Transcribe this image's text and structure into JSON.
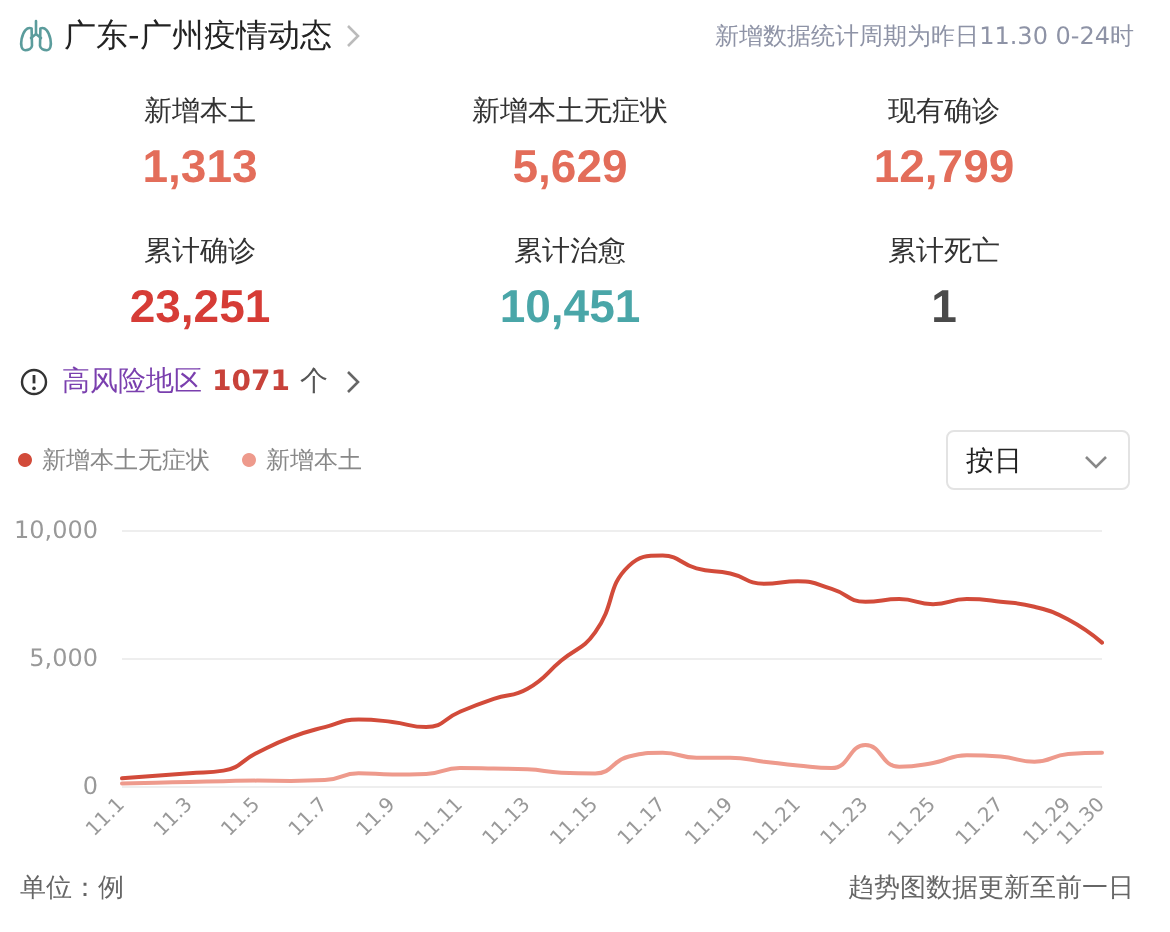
{
  "chart_data": [
    {
      "type": "other",
      "title": "广东-广州疫情动态",
      "subtitle": "新增数据统计周期为昨日11.30 0-24时",
      "annotations": [
        "新增本土",
        "1,313",
        "新增本土无症状",
        "5,629",
        "现有确诊",
        "12,799",
        "累计确诊",
        "23,251",
        "累计治愈",
        "10,451",
        "累计死亡",
        "1",
        "高风险地区 1071 个"
      ]
    },
    {
      "type": "line",
      "categories": [
        "11.1",
        null,
        "11.3",
        null,
        "11.5",
        null,
        "11.7",
        null,
        "11.9",
        null,
        "11.11",
        null,
        "11.13",
        null,
        "11.15",
        null,
        "11.17",
        null,
        "11.19",
        null,
        "11.21",
        null,
        "11.23",
        null,
        "11.25",
        null,
        "11.27",
        null,
        "11.29",
        "11.30"
      ],
      "series": [
        {
          "name": "新增本土无症状",
          "color": "#d24b3a",
          "values": [
            300,
            400,
            500,
            600,
            1300,
            1900,
            2300,
            2600,
            2500,
            2300,
            2900,
            3400,
            3800,
            4900,
            6000,
            8600,
            9000,
            8500,
            8300,
            7900,
            8000,
            7700,
            7200,
            7300,
            7100,
            7300,
            7200,
            7000,
            6500,
            5600
          ]
        },
        {
          "name": "新增本土",
          "color": "#ee9a8c",
          "values": [
            100,
            130,
            160,
            190,
            210,
            200,
            230,
            500,
            450,
            470,
            700,
            680,
            650,
            520,
            490,
            1150,
            1300,
            1100,
            1100,
            950,
            800,
            700,
            1600,
            750,
            900,
            1200,
            1150,
            950,
            1250,
            1300
          ]
        }
      ],
      "ylim": [
        0,
        10000
      ],
      "yticks": [
        0,
        {
          "value": 5000,
          "label": "5,000"
        },
        {
          "value": 10000,
          "label": "10,000"
        }
      ],
      "grid": "y",
      "legend": "top left",
      "marker": "none",
      "line_style": "solid",
      "ylabel": "单位：例",
      "annotations": [
        "按日",
        "趋势图数据更新至前一日"
      ]
    }
  ]
}
